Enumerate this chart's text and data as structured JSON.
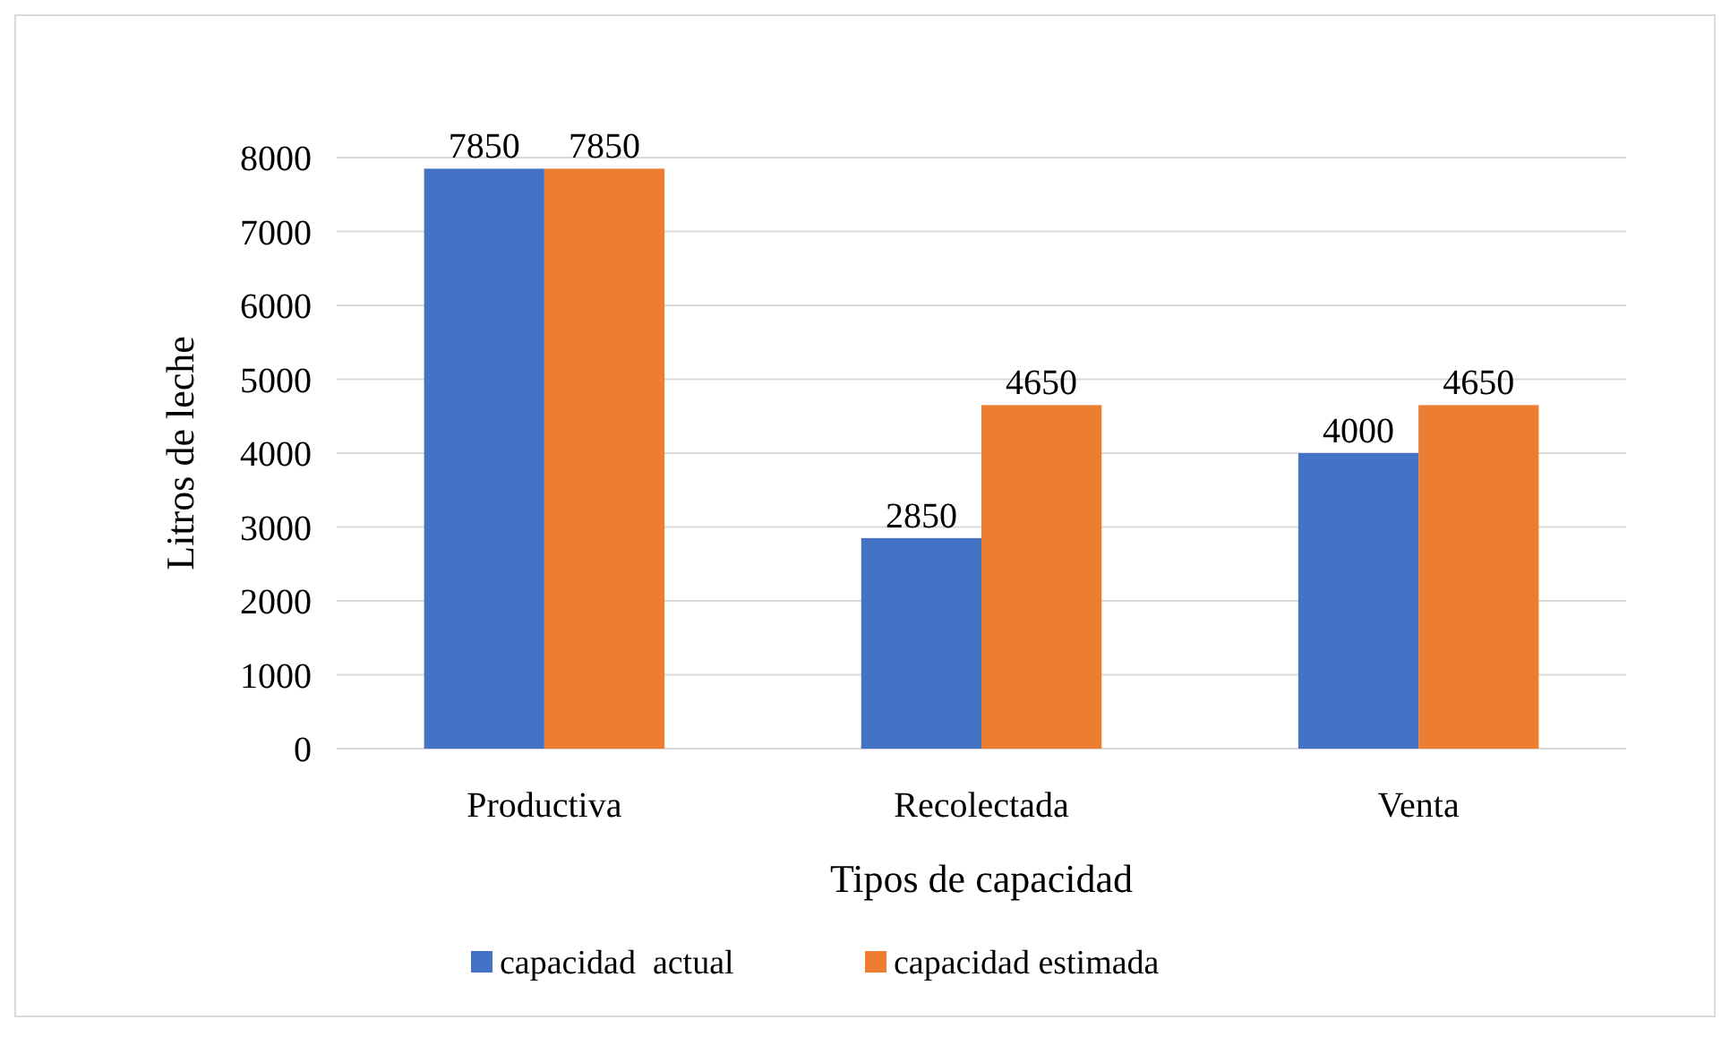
{
  "chart_data": {
    "type": "bar",
    "xlabel": "Tipos de capacidad",
    "ylabel": "Litros de leche",
    "categories": [
      "Productiva",
      "Recolectada",
      "Venta"
    ],
    "series": [
      {
        "name": "capacidad  actual",
        "color": "#4472c4",
        "values": [
          7850,
          2850,
          4000
        ]
      },
      {
        "name": "capacidad estimada",
        "color": "#ed7d31",
        "values": [
          7850,
          4650,
          4650
        ]
      }
    ],
    "ylim": [
      0,
      8000
    ],
    "yticks": [
      0,
      1000,
      2000,
      3000,
      4000,
      5000,
      6000,
      7000,
      8000
    ],
    "grid": "y",
    "legend": "bottom",
    "data_labels": true
  }
}
